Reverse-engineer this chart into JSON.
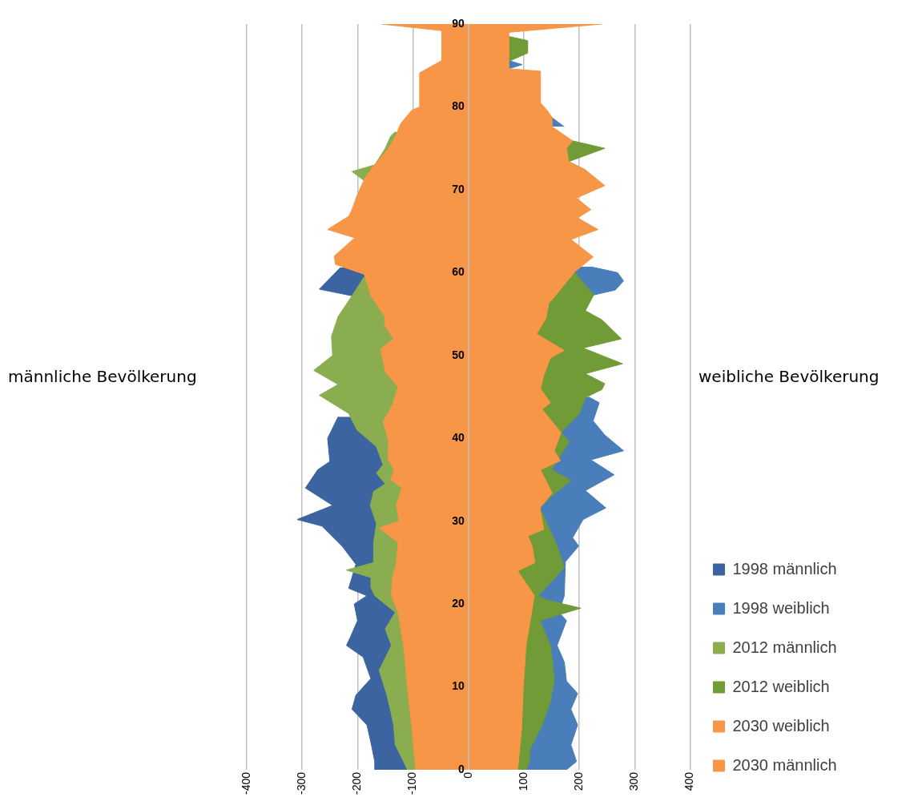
{
  "chart_data": {
    "type": "area",
    "orientation": "horizontal",
    "xlim": [
      -400,
      400
    ],
    "xticks": [
      -400,
      -300,
      -200,
      -100,
      0,
      100,
      200,
      300,
      400
    ],
    "ylim": [
      0,
      90
    ],
    "yticks": [
      0,
      10,
      20,
      30,
      40,
      50,
      60,
      70,
      80,
      90
    ],
    "grid": "x",
    "legend": "bottom right",
    "annotations": [
      "männliche Bevölkerung",
      "weibliche Bevölkerung"
    ],
    "series": [
      {
        "name": "1998 männlich",
        "color": "#3b64a0",
        "x": [
          0,
          1,
          3,
          5.4,
          7.3,
          9,
          11,
          13.6,
          15,
          16,
          18,
          20,
          21,
          21.9,
          24.8,
          27,
          29.4,
          30.2,
          31.9,
          34,
          36.2,
          37.2,
          40,
          42.6,
          50,
          57.2,
          58,
          60.6
        ],
        "values": [
          -169,
          -169,
          -175,
          -183,
          -210,
          -203,
          -176,
          -190,
          -220,
          -213,
          -200,
          -206,
          -183,
          -216,
          -203,
          -228,
          -264,
          -309,
          -245,
          -294,
          -272,
          -250,
          -254,
          -235,
          null,
          -210,
          -269,
          -231
        ]
      },
      {
        "name": "1998 weiblich",
        "color": "#4a7ebb",
        "x": [
          0,
          1,
          3,
          5.4,
          7.3,
          9.2,
          10.7,
          13,
          15,
          18,
          19,
          21,
          25.1,
          27,
          28,
          30.2,
          31.6,
          33.7,
          35.6,
          37.4,
          38.5,
          40.4,
          42.1,
          44.3,
          45,
          50,
          57.3,
          57.9,
          59,
          60,
          60.7,
          70,
          77.6,
          78.7,
          84.6,
          85.1,
          85.6
        ],
        "values": [
          177,
          195,
          185,
          197,
          185,
          197,
          177,
          173,
          160,
          177,
          163,
          173,
          175,
          199,
          188,
          207,
          248,
          211,
          263,
          221,
          280,
          246,
          225,
          236,
          217,
          null,
          226,
          265,
          280,
          269,
          221,
          null,
          173,
          151,
          73,
          97,
          73
        ]
      },
      {
        "name": "2012 männlich",
        "color": "#8aad4f",
        "x": [
          0,
          1,
          3,
          5.4,
          7,
          9,
          12,
          15,
          17,
          19,
          21,
          22,
          23.2,
          24.1,
          25,
          27.4,
          29.7,
          31.9,
          33.6,
          34.5,
          35.8,
          36.8,
          39,
          41,
          43,
          45.2,
          46.5,
          48.2,
          50,
          52.3,
          54.7,
          55.9,
          57.2,
          59.5,
          65,
          71,
          72.2,
          73,
          75,
          76.5,
          77
        ],
        "values": [
          -110,
          -117,
          -132,
          -135,
          -140,
          -147,
          -161,
          -139,
          -150,
          -132,
          -169,
          -176,
          -176,
          -220,
          -171,
          -171,
          -166,
          -177,
          -171,
          -150,
          -166,
          -154,
          -166,
          -201,
          -216,
          -269,
          -235,
          -279,
          -245,
          -247,
          -235,
          -223,
          -210,
          -188,
          null,
          -186,
          -210,
          -169,
          -150,
          -140,
          -132
        ]
      },
      {
        "name": "2012 weiblich",
        "color": "#719b36",
        "x": [
          0,
          1,
          2.5,
          5.4,
          8.3,
          11,
          15,
          18,
          19.5,
          20.5,
          21,
          24.4,
          27,
          31.6,
          33,
          34.9,
          36.2,
          39.6,
          40.7,
          43,
          44.9,
          45.9,
          46.6,
          47.8,
          49,
          50.9,
          52,
          54.3,
          55.4,
          57.3,
          60,
          67,
          72.4,
          73.4,
          75,
          75.9,
          80,
          85.5,
          86.5,
          88,
          88.5
        ],
        "values": [
          104,
          110,
          111,
          133,
          148,
          155,
          148,
          129,
          203,
          140,
          126,
          173,
          160,
          129,
          150,
          185,
          150,
          182,
          167,
          200,
          211,
          241,
          246,
          211,
          278,
          207,
          276,
          241,
          211,
          226,
          192,
          null,
          211,
          181,
          246,
          188,
          null,
          73,
          107,
          107,
          73
        ]
      },
      {
        "name": "2030 weiblich",
        "color": "#f79646",
        "x": [
          0,
          5,
          10,
          15,
          19,
          21,
          24,
          25,
          27,
          28.2,
          29,
          31.6,
          33.4,
          36.2,
          37.3,
          38.5,
          40.7,
          43.5,
          44.3,
          46,
          47.6,
          49.7,
          50.6,
          52.6,
          54.5,
          56.3,
          57.3,
          60.1,
          61.9,
          64,
          65.2,
          66.6,
          67.6,
          69,
          70.5,
          72.4,
          73.4,
          75,
          75.9,
          77.6,
          78.7,
          79.5,
          80.5,
          84.3,
          84.6,
          89,
          90
        ],
        "values": [
          89,
          96,
          99,
          104,
          114,
          119,
          89,
          120,
          115,
          107,
          136,
          129,
          151,
          130,
          166,
          155,
          167,
          133,
          148,
          130,
          136,
          148,
          173,
          123,
          140,
          145,
          158,
          192,
          225,
          185,
          234,
          197,
          221,
          195,
          246,
          211,
          181,
          177,
          188,
          151,
          151,
          143,
          130,
          130,
          73,
          73,
          241
        ]
      },
      {
        "name": "2030 männlich",
        "color": "#f79646",
        "x": [
          0,
          5,
          10,
          15,
          19,
          21,
          23.2,
          25,
          27.4,
          29.2,
          30,
          32,
          34,
          35,
          36.2,
          37.5,
          39.7,
          42,
          44,
          46.2,
          48,
          50.8,
          52,
          53.5,
          54.7,
          57.2,
          59.8,
          61,
          62,
          64.2,
          65.2,
          66.8,
          67.6,
          69.3,
          71.5,
          73,
          75,
          76.4,
          78,
          79.6,
          80,
          84.1,
          85.6,
          89.2,
          90
        ],
        "values": [
          -95,
          -102,
          -110,
          -117,
          -127,
          -139,
          -137,
          -130,
          -127,
          -161,
          -125,
          -130,
          -120,
          -140,
          -134,
          -145,
          -144,
          -154,
          -137,
          -127,
          -150,
          -158,
          -135,
          -150,
          -151,
          -176,
          -188,
          -240,
          -242,
          -205,
          -254,
          -216,
          -210,
          -201,
          -186,
          -169,
          -144,
          -132,
          -122,
          -102,
          -88,
          -88,
          -48,
          -48,
          -157
        ]
      }
    ]
  }
}
